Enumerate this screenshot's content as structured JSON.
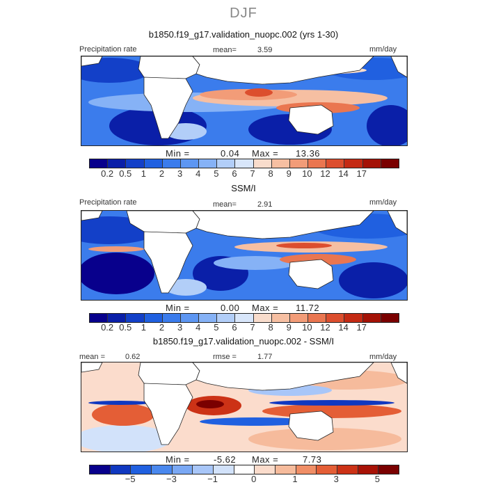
{
  "figure": {
    "season": "DJF",
    "panel1_title": "b1850.f19_g17.validation_nuopc.002 (yrs 1-30)",
    "panel2_title": "SSM/I",
    "panel3_title": "b1850.f19_g17.validation_nuopc.002 - SSM/I"
  },
  "panels": [
    {
      "left_label": "Precipitation rate",
      "mean_label": "mean=",
      "mean_value": "3.59",
      "units": "mm/day",
      "min_label": "Min =",
      "min_value": "0.04",
      "max_label": "Max =",
      "max_value": "13.36"
    },
    {
      "left_label": "Precipitation rate",
      "mean_label": "mean=",
      "mean_value": "2.91",
      "units": "mm/day",
      "min_label": "Min =",
      "min_value": "0.00",
      "max_label": "Max =",
      "max_value": "11.72"
    },
    {
      "left_label": "mean =",
      "left_value": "0.62",
      "mean_label": "rmse =",
      "mean_value": "1.77",
      "units": "mm/day",
      "min_label": "Min =",
      "min_value": "-5.62",
      "max_label": "Max =",
      "max_value": "7.73"
    }
  ],
  "chart_data": [
    {
      "type": "heatmap",
      "title": "b1850.f19_g17.validation_nuopc.002 (yrs 1-30)",
      "variable": "Precipitation rate",
      "units": "mm/day",
      "mean": 3.59,
      "min": 0.04,
      "max": 13.36,
      "colorbar_ticks": [
        "0.2",
        "0.5",
        "1",
        "2",
        "3",
        "4",
        "5",
        "6",
        "7",
        "8",
        "9",
        "10",
        "12",
        "14",
        "17"
      ]
    },
    {
      "type": "heatmap",
      "title": "SSM/I",
      "variable": "Precipitation rate",
      "units": "mm/day",
      "mean": 2.91,
      "min": 0.0,
      "max": 11.72,
      "colorbar_ticks": [
        "0.2",
        "0.5",
        "1",
        "2",
        "3",
        "4",
        "5",
        "6",
        "7",
        "8",
        "9",
        "10",
        "12",
        "14",
        "17"
      ]
    },
    {
      "type": "heatmap",
      "title": "b1850.f19_g17.validation_nuopc.002 - SSM/I",
      "units": "mm/day",
      "mean": 0.62,
      "rmse": 1.77,
      "min": -5.62,
      "max": 7.73,
      "colorbar_ticks": [
        "−5",
        "−3",
        "−1",
        "0",
        "1",
        "3",
        "5"
      ]
    }
  ],
  "colors": {
    "abs_scale": [
      "#08008c",
      "#0a1fa8",
      "#1340c8",
      "#2060e0",
      "#3b7cec",
      "#5d96f2",
      "#86b2f6",
      "#b2cef8",
      "#d8e6fa",
      "#f8dccc",
      "#f6bfa2",
      "#f29c78",
      "#ea7650",
      "#dc4e2e",
      "#c42a14",
      "#a41206",
      "#7a0000"
    ],
    "diff_scale": [
      "#08008c",
      "#1038c0",
      "#2060e0",
      "#4a88ee",
      "#7aa8f4",
      "#a8c6f8",
      "#d2e2fa",
      "#ffffff",
      "#fbdccc",
      "#f6bb9c",
      "#f08e66",
      "#e45e36",
      "#cc3216",
      "#a81206",
      "#7a0000"
    ]
  }
}
